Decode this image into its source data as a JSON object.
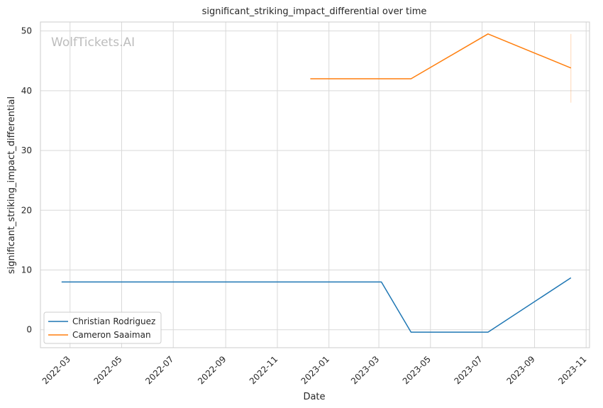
{
  "chart_data": {
    "type": "line",
    "title": "significant_striking_impact_differential over time",
    "xlabel": "Date",
    "ylabel": "significant_striking_impact_differential",
    "x_ticks": [
      "2022-03",
      "2022-05",
      "2022-07",
      "2022-09",
      "2022-11",
      "2023-01",
      "2023-03",
      "2023-05",
      "2023-07",
      "2023-09",
      "2023-11"
    ],
    "y_ticks": [
      0,
      10,
      20,
      30,
      40,
      50
    ],
    "xlim": [
      "2022-01-25",
      "2023-11-05"
    ],
    "ylim": [
      -3,
      51.5
    ],
    "grid": true,
    "legend_position": "lower-left",
    "watermark": "WolfTickets.AI",
    "series": [
      {
        "name": "Christian Rodriguez",
        "color": "#1f77b4",
        "points": [
          {
            "x": "2022-02-19",
            "y": 8.0
          },
          {
            "x": "2023-03-04",
            "y": 8.0
          },
          {
            "x": "2023-04-08",
            "y": -0.4
          },
          {
            "x": "2023-07-08",
            "y": -0.4
          },
          {
            "x": "2023-10-14",
            "y": 8.7
          }
        ]
      },
      {
        "name": "Cameron Saaiman",
        "color": "#ff7f0e",
        "points": [
          {
            "x": "2022-12-10",
            "y": 42.0
          },
          {
            "x": "2023-04-08",
            "y": 42.0
          },
          {
            "x": "2023-07-08",
            "y": 49.5
          },
          {
            "x": "2023-10-14",
            "y": 43.8
          }
        ],
        "error_bar": {
          "x": "2023-10-14",
          "low": 38.0,
          "high": 49.5
        }
      }
    ]
  }
}
